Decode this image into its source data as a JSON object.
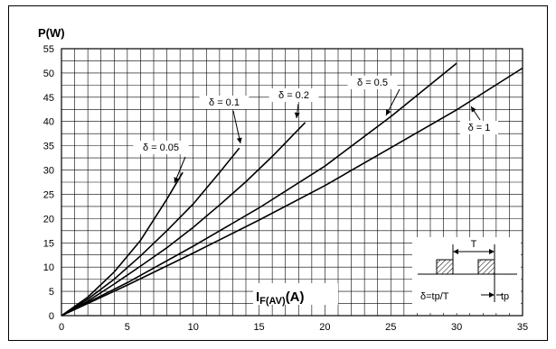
{
  "chart_data": {
    "type": "line",
    "ylabel": "P(W)",
    "xlabel_main": "I",
    "xlabel_sub": "F(AV)",
    "xlabel_unit": "(A)",
    "xlim": [
      0,
      35
    ],
    "ylim": [
      0,
      55
    ],
    "x_ticks": [
      0,
      5,
      10,
      15,
      20,
      25,
      30,
      35
    ],
    "y_ticks": [
      0,
      5,
      10,
      15,
      20,
      25,
      30,
      35,
      40,
      45,
      50,
      55
    ],
    "grid": true,
    "series": [
      {
        "name": "δ = 0.05",
        "x": [
          0,
          2,
          4,
          6,
          8,
          9.2
        ],
        "y": [
          0,
          3.8,
          9,
          15.5,
          24,
          29.5
        ]
      },
      {
        "name": "δ = 0.1",
        "x": [
          0,
          2,
          4,
          6,
          8,
          10,
          12,
          13.5
        ],
        "y": [
          0,
          3.4,
          7.5,
          12.3,
          17.5,
          23,
          29.5,
          34.5
        ]
      },
      {
        "name": "δ = 0.2",
        "x": [
          0,
          2,
          4,
          6,
          8,
          10,
          12,
          14,
          16,
          18.5
        ],
        "y": [
          0,
          3,
          6.5,
          10.2,
          14,
          18.2,
          22.8,
          27.6,
          32.8,
          39.8
        ]
      },
      {
        "name": "δ = 0.5",
        "x": [
          0,
          5,
          10,
          15,
          20,
          25,
          30
        ],
        "y": [
          0,
          6.8,
          14.3,
          22.2,
          30.8,
          41,
          52
        ]
      },
      {
        "name": "δ = 1",
        "x": [
          0,
          5,
          10,
          15,
          20,
          25,
          30,
          35
        ],
        "y": [
          0,
          6.3,
          12.9,
          19.7,
          26.8,
          34.6,
          42.4,
          51
        ]
      }
    ],
    "inset": {
      "period_label": "T",
      "duty_label": "δ=tp/T",
      "pulse_label": "tp"
    }
  }
}
